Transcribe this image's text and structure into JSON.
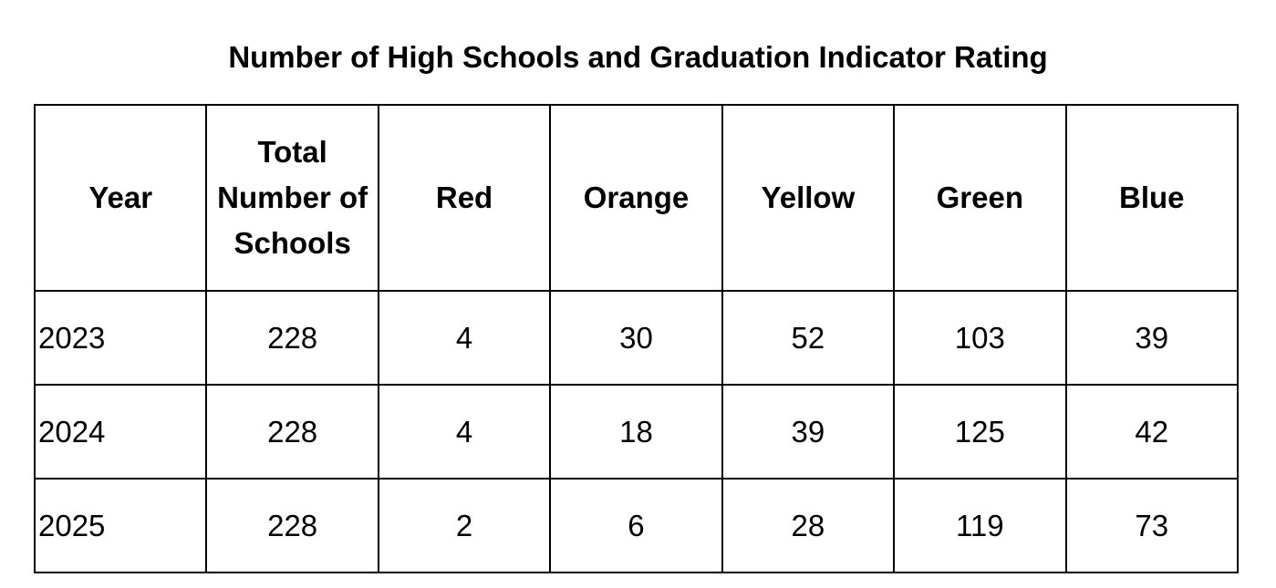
{
  "title": "Number of High Schools and Graduation Indicator Rating",
  "table": {
    "header": [
      "Year",
      "Total Number of Schools",
      "Red",
      "Orange",
      "Yellow",
      "Green",
      "Blue"
    ],
    "rows": [
      [
        2023,
        228,
        4,
        30,
        52,
        103,
        39
      ],
      [
        2024,
        228,
        4,
        18,
        39,
        125,
        42
      ],
      [
        2025,
        228,
        2,
        6,
        28,
        119,
        73
      ]
    ]
  }
}
